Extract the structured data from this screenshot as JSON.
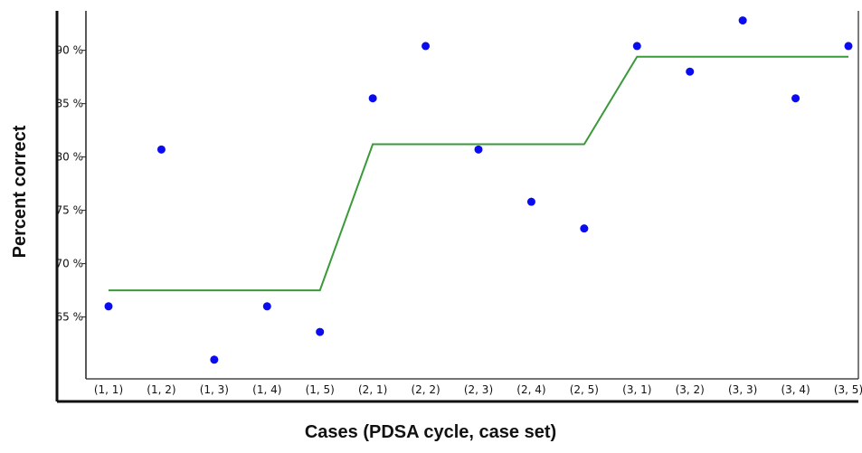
{
  "chart_data": {
    "type": "scatter",
    "title": "",
    "xlabel": "Cases (PDSA cycle, case set)",
    "ylabel": "Percent correct",
    "categories": [
      "(1, 1)",
      "(1, 2)",
      "(1, 3)",
      "(1, 4)",
      "(1, 5)",
      "(2, 1)",
      "(2, 2)",
      "(2, 3)",
      "(2, 4)",
      "(2, 5)",
      "(3, 1)",
      "(3, 2)",
      "(3, 3)",
      "(3, 4)",
      "(3, 5)"
    ],
    "yticks": [
      65,
      70,
      75,
      80,
      85,
      90
    ],
    "ytick_labels": [
      "65 %",
      "70 %",
      "75 %",
      "80 %",
      "85 %",
      "90 %"
    ],
    "ylim": [
      59.2,
      93.7
    ],
    "grid": false,
    "series": [
      {
        "type": "scatter",
        "color": "#0b0bf0",
        "values": [
          66.0,
          80.7,
          61.0,
          66.0,
          63.6,
          85.5,
          90.4,
          80.7,
          75.8,
          73.3,
          90.4,
          88.0,
          92.8,
          85.5,
          90.4
        ]
      },
      {
        "type": "line",
        "color": "#3a9a3a",
        "values": [
          67.5,
          67.5,
          67.5,
          67.5,
          67.5,
          81.2,
          81.2,
          81.2,
          81.2,
          81.2,
          89.4,
          89.4,
          89.4,
          89.4,
          89.4
        ]
      }
    ]
  }
}
